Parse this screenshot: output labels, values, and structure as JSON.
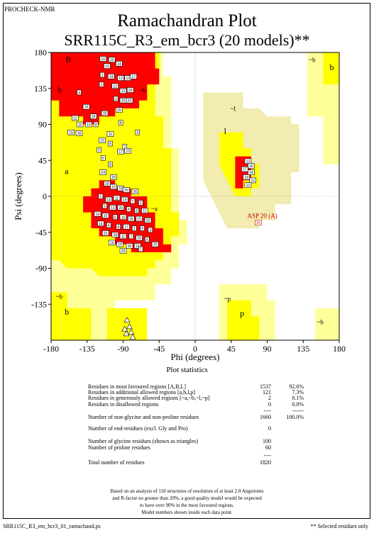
{
  "header": {
    "program": "PROCHECK-NMR",
    "title": "Ramachandran Plot",
    "subtitle": "SRR115C_R3_em_bcr3 (20 models)**"
  },
  "colors": {
    "most_favoured": "#ff0000",
    "additional_allowed": "#ffff00",
    "generously_allowed": "#ffff99",
    "generously_allowed_dark": "#f2ecb0",
    "disallowed": "#ffffff"
  },
  "chart_data": {
    "type": "scatter",
    "xlabel": "Phi (degrees)",
    "ylabel": "Psi (degrees)",
    "xlim": [
      -180,
      180
    ],
    "ylim": [
      -180,
      180
    ],
    "xticks": [
      "-180",
      "-135",
      "-90",
      "-45",
      "0",
      "45",
      "90",
      "135",
      "180"
    ],
    "yticks": [
      "180",
      "135",
      "90",
      "45",
      "0",
      "-45",
      "-90",
      "-135"
    ],
    "region_labels": [
      {
        "text": "B",
        "phi": -162,
        "psi": 168
      },
      {
        "text": "b",
        "phi": -172,
        "psi": 130
      },
      {
        "text": "~b",
        "phi": -70,
        "psi": 130
      },
      {
        "text": "a",
        "phi": -163,
        "psi": 28
      },
      {
        "text": "~a",
        "phi": -55,
        "psi": -18
      },
      {
        "text": "~l",
        "phi": 44,
        "psi": 107
      },
      {
        "text": "l",
        "phi": 36,
        "psi": 78
      },
      {
        "text": "~b",
        "phi": 142,
        "psi": 168
      },
      {
        "text": "~p",
        "phi": 36,
        "psi": -131
      },
      {
        "text": "p",
        "phi": 56,
        "psi": -150
      },
      {
        "text": "~b",
        "phi": -174,
        "psi": -128
      },
      {
        "text": "b",
        "phi": -163,
        "psi": -148
      },
      {
        "text": "~b",
        "phi": 152,
        "psi": -160
      },
      {
        "text": "b",
        "phi": 168,
        "psi": 158
      }
    ],
    "highlighted_residue": {
      "label": "ASP 20 (A)",
      "model": "20",
      "phi": 74,
      "psi": -19
    },
    "labelled_points": [
      {
        "phi": -115,
        "psi": 172,
        "m": "10"
      },
      {
        "phi": -104,
        "psi": 171,
        "m": "10"
      },
      {
        "phi": -110,
        "psi": 163,
        "m": "13"
      },
      {
        "phi": -95,
        "psi": 166,
        "m": "14"
      },
      {
        "phi": -116,
        "psi": 152,
        "m": "1"
      },
      {
        "phi": -105,
        "psi": 150,
        "m": "19"
      },
      {
        "phi": -93,
        "psi": 148,
        "m": "13"
      },
      {
        "phi": -84,
        "psi": 148,
        "m": "13"
      },
      {
        "phi": -77,
        "psi": 150,
        "m": "17"
      },
      {
        "phi": -117,
        "psi": 140,
        "m": "1"
      },
      {
        "phi": -100,
        "psi": 138,
        "m": "12"
      },
      {
        "phi": -90,
        "psi": 132,
        "m": "12"
      },
      {
        "phi": -81,
        "psi": 133,
        "m": "20"
      },
      {
        "phi": -145,
        "psi": 130,
        "m": "4"
      },
      {
        "phi": -99,
        "psi": 122,
        "m": "3"
      },
      {
        "phi": -90,
        "psi": 120,
        "m": "20"
      },
      {
        "phi": -82,
        "psi": 120,
        "m": "20"
      },
      {
        "phi": -136,
        "psi": 112,
        "m": "16"
      },
      {
        "phi": -95,
        "psi": 108,
        "m": "15"
      },
      {
        "phi": -127,
        "psi": 100,
        "m": "18"
      },
      {
        "phi": -113,
        "psi": 104,
        "m": "18"
      },
      {
        "phi": -150,
        "psi": 98,
        "m": "11"
      },
      {
        "phi": -144,
        "psi": 90,
        "m": "10"
      },
      {
        "phi": -133,
        "psi": 90,
        "m": "19"
      },
      {
        "phi": -124,
        "psi": 90,
        "m": "9"
      },
      {
        "phi": -93,
        "psi": 92,
        "m": "8"
      },
      {
        "phi": -155,
        "psi": 80,
        "m": "15"
      },
      {
        "phi": -145,
        "psi": 79,
        "m": "16"
      },
      {
        "phi": -72,
        "psi": 80,
        "m": "9"
      },
      {
        "phi": -106,
        "psi": 78,
        "m": "11"
      },
      {
        "phi": -116,
        "psi": 70,
        "m": "15"
      },
      {
        "phi": -106,
        "psi": 66,
        "m": "8"
      },
      {
        "phi": -88,
        "psi": 62,
        "m": "7"
      },
      {
        "phi": -84,
        "psi": 57,
        "m": "19"
      },
      {
        "phi": -93,
        "psi": 56,
        "m": "17"
      },
      {
        "phi": -120,
        "psi": 58,
        "m": "5"
      },
      {
        "phi": -115,
        "psi": 48,
        "m": "6"
      },
      {
        "phi": -106,
        "psi": 40,
        "m": "8"
      },
      {
        "phi": -115,
        "psi": 30,
        "m": "14"
      },
      {
        "phi": -102,
        "psi": 24,
        "m": "20"
      },
      {
        "phi": -110,
        "psi": 16,
        "m": "18"
      },
      {
        "phi": -102,
        "psi": 12,
        "m": "19"
      },
      {
        "phi": -93,
        "psi": 10,
        "m": "18"
      },
      {
        "phi": -86,
        "psi": 8,
        "m": "20"
      },
      {
        "phi": -75,
        "psi": 6,
        "m": "16"
      },
      {
        "phi": -118,
        "psi": 0,
        "m": "1"
      },
      {
        "phi": -108,
        "psi": -4,
        "m": "14"
      },
      {
        "phi": -98,
        "psi": -2,
        "m": "11"
      },
      {
        "phi": -88,
        "psi": -4,
        "m": "19"
      },
      {
        "phi": -78,
        "psi": -6,
        "m": "7"
      },
      {
        "phi": -68,
        "psi": -8,
        "m": "2"
      },
      {
        "phi": -113,
        "psi": -12,
        "m": "5"
      },
      {
        "phi": -103,
        "psi": -14,
        "m": "13"
      },
      {
        "phi": -93,
        "psi": -14,
        "m": "20"
      },
      {
        "phi": -83,
        "psi": -16,
        "m": "4"
      },
      {
        "phi": -73,
        "psi": -18,
        "m": "8"
      },
      {
        "phi": -63,
        "psi": -18,
        "m": "12"
      },
      {
        "phi": -122,
        "psi": -22,
        "m": "19"
      },
      {
        "phi": -112,
        "psi": -24,
        "m": "10"
      },
      {
        "phi": -100,
        "psi": -26,
        "m": "6"
      },
      {
        "phi": -90,
        "psi": -26,
        "m": "16"
      },
      {
        "phi": -80,
        "psi": -28,
        "m": "18"
      },
      {
        "phi": -70,
        "psi": -28,
        "m": "15"
      },
      {
        "phi": -59,
        "psi": -30,
        "m": "20"
      },
      {
        "phi": -118,
        "psi": -34,
        "m": "14"
      },
      {
        "phi": -108,
        "psi": -36,
        "m": "4"
      },
      {
        "phi": -96,
        "psi": -38,
        "m": "8"
      },
      {
        "phi": -86,
        "psi": -38,
        "m": "17"
      },
      {
        "phi": -76,
        "psi": -40,
        "m": "2"
      },
      {
        "phi": -66,
        "psi": -40,
        "m": "9"
      },
      {
        "phi": -56,
        "psi": -42,
        "m": "3"
      },
      {
        "phi": -112,
        "psi": -46,
        "m": "13"
      },
      {
        "phi": -100,
        "psi": -48,
        "m": "18"
      },
      {
        "phi": -90,
        "psi": -50,
        "m": "11"
      },
      {
        "phi": -80,
        "psi": -50,
        "m": "7"
      },
      {
        "phi": -70,
        "psi": -52,
        "m": "20"
      },
      {
        "phi": -60,
        "psi": -54,
        "m": "6"
      },
      {
        "phi": -104,
        "psi": -58,
        "m": "16"
      },
      {
        "phi": -94,
        "psi": -60,
        "m": "19"
      },
      {
        "phi": -82,
        "psi": -62,
        "m": "20"
      },
      {
        "phi": -72,
        "psi": -62,
        "m": "13"
      },
      {
        "phi": -90,
        "psi": -68,
        "m": "20"
      },
      {
        "phi": -68,
        "psi": -66,
        "m": "7"
      },
      {
        "phi": -50,
        "psi": -60,
        "m": "20"
      },
      {
        "phi": 66,
        "psi": 44,
        "m": "13"
      },
      {
        "phi": 70,
        "psi": 38,
        "m": "16"
      },
      {
        "phi": 62,
        "psi": 34,
        "m": "17"
      },
      {
        "phi": 70,
        "psi": 30,
        "m": "14"
      },
      {
        "phi": 64,
        "psi": 24,
        "m": "19"
      },
      {
        "phi": 72,
        "psi": 20,
        "m": "15"
      },
      {
        "phi": 66,
        "psi": 14,
        "m": "12"
      }
    ],
    "glycine_triangles": [
      {
        "phi": -85,
        "psi": -155
      },
      {
        "phi": -82,
        "psi": -163
      },
      {
        "phi": -88,
        "psi": -166
      },
      {
        "phi": -80,
        "psi": -170
      },
      {
        "phi": -86,
        "psi": -172
      },
      {
        "phi": -78,
        "psi": -176
      }
    ]
  },
  "stats": {
    "title": "Plot statistics",
    "rows": [
      {
        "label": "Residues in most favoured regions  [A,B,L]",
        "value": "1537",
        "pct": "92.6%"
      },
      {
        "label": "Residues in additional allowed regions  [a,b,l,p]",
        "value": "121",
        "pct": "7.3%"
      },
      {
        "label": "Residues in generously allowed regions  [~a,~b,~l,~p]",
        "value": "2",
        "pct": "0.1%"
      },
      {
        "label": "Residues in disallowed regions",
        "value": "0",
        "pct": "0.0%"
      },
      {
        "label": "Number of non-glycine and non-proline residues",
        "value": "1660",
        "pct": "100.0%"
      },
      {
        "label": "Number of end-residues (excl. Gly and Pro)",
        "value": "0",
        "pct": ""
      },
      {
        "label": "Number of glycine residues (shown as triangles)",
        "value": "100",
        "pct": ""
      },
      {
        "label": "Number of proline residues",
        "value": "60",
        "pct": ""
      },
      {
        "label": "Total number of residues",
        "value": "1820",
        "pct": ""
      }
    ],
    "dash_short": "----",
    "dash_long": "------"
  },
  "note": {
    "lines": [
      "Based on an analysis of 118 structures of resolution of at least 2.0 Angstroms",
      "and R-factor no greater than 20%, a good quality model would be expected",
      "to have over 90% in the most favoured regions.",
      "Model numbers shown inside each data point."
    ]
  },
  "footer": {
    "left": "SRR115C_R3_em_bcr3_01_ramachand.ps",
    "right": "** Selected residues only"
  }
}
